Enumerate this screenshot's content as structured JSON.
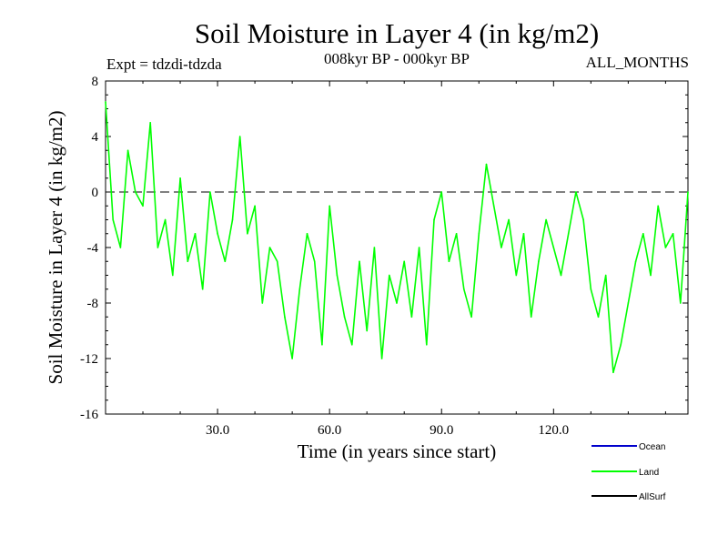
{
  "chart_data": {
    "type": "line",
    "title": "Soil Moisture in Layer 4 (in kg/m2)",
    "subtitle": "008kyr BP - 000kyr BP",
    "experiment": "Expt = tdzdi-tdzda",
    "season": "ALL_MONTHS",
    "xlabel": "Time (in years since start)",
    "ylabel": "Soil Moisture in Layer 4 (in kg/m2)",
    "xlim": [
      0,
      156
    ],
    "ylim": [
      -16,
      8
    ],
    "x_ticks": [
      30,
      60,
      90,
      120
    ],
    "x_tick_labels": [
      "30.0",
      "60.0",
      "90.0",
      "120.0"
    ],
    "y_ticks": [
      -16,
      -12,
      -8,
      -4,
      0,
      4,
      8
    ],
    "y_tick_labels": [
      "-16",
      "-12",
      "-8",
      "-4",
      "0",
      "4",
      "8"
    ],
    "reference_line": 0,
    "series": [
      {
        "name": "Land",
        "color": "#00ff00",
        "x": [
          0,
          2,
          4,
          6,
          8,
          10,
          12,
          14,
          16,
          18,
          20,
          22,
          24,
          26,
          28,
          30,
          32,
          34,
          36,
          38,
          40,
          42,
          44,
          46,
          48,
          50,
          52,
          54,
          56,
          58,
          60,
          62,
          64,
          66,
          68,
          70,
          72,
          74,
          76,
          78,
          80,
          82,
          84,
          86,
          88,
          90,
          92,
          94,
          96,
          98,
          100,
          102,
          104,
          106,
          108,
          110,
          112,
          114,
          116,
          118,
          120,
          122,
          124,
          126,
          128,
          130,
          132,
          134,
          136,
          138,
          140,
          142,
          144,
          146,
          148,
          150,
          152,
          154,
          156
        ],
        "values": [
          6.5,
          -2,
          -4,
          3,
          0,
          -1,
          5,
          -4,
          -2,
          -6,
          1,
          -5,
          -3,
          -7,
          0,
          -3,
          -5,
          -2,
          4,
          -3,
          -1,
          -8,
          -4,
          -5,
          -9,
          -12,
          -7,
          -3,
          -5,
          -11,
          -1,
          -6,
          -9,
          -11,
          -5,
          -10,
          -4,
          -12,
          -6,
          -8,
          -5,
          -9,
          -4,
          -11,
          -2,
          0,
          -5,
          -3,
          -7,
          -9,
          -3,
          2,
          -1,
          -4,
          -2,
          -6,
          -3,
          -9,
          -5,
          -2,
          -4,
          -6,
          -3,
          0,
          -2,
          -7,
          -9,
          -6,
          -13,
          -11,
          -8,
          -5,
          -3,
          -6,
          -1,
          -4,
          -3,
          -8,
          0
        ],
        "legend_label": "Land"
      },
      {
        "name": "Ocean",
        "color": "#0000cc",
        "x": [],
        "values": [],
        "legend_label": "Ocean"
      },
      {
        "name": "AllSurf",
        "color": "#000000",
        "x": [],
        "values": [],
        "legend_label": "AllSurf"
      }
    ]
  }
}
